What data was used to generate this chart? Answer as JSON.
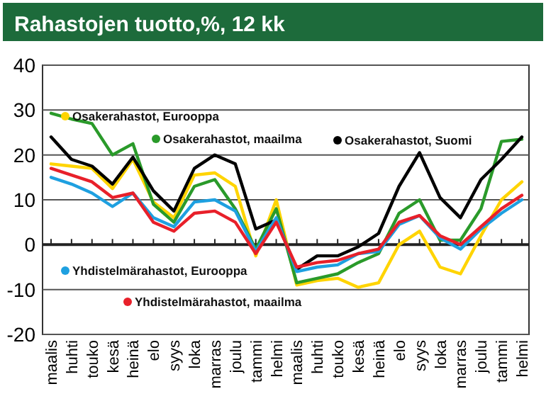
{
  "chart_data": {
    "type": "line",
    "title": "Rahastojen tuotto,%, 12 kk",
    "categories": [
      "maalis",
      "huhti",
      "touko",
      "kesä",
      "heinä",
      "elo",
      "syys",
      "loka",
      "marras",
      "joulu",
      "tammi",
      "helmi",
      "maalis",
      "huhti",
      "touko",
      "kesä",
      "heinä",
      "elo",
      "syys",
      "loka",
      "marras",
      "joulu",
      "tammi",
      "helmi"
    ],
    "series": [
      {
        "name": "Osakerahastot, Eurooppa",
        "color": "#ffd400",
        "values": [
          18,
          17.5,
          17,
          12.5,
          19,
          9.5,
          6,
          15.5,
          16,
          13,
          -2.5,
          10,
          -9,
          -8,
          -7.5,
          -9.5,
          -8.5,
          0,
          3,
          -5,
          -6.5,
          2,
          10,
          14
        ]
      },
      {
        "name": "Osakerahastot, maailma",
        "color": "#2a9a2a",
        "values": [
          29.3,
          28,
          27,
          20,
          22.5,
          9,
          5,
          13,
          14.5,
          8,
          -1,
          8,
          -8.5,
          -7.5,
          -6.5,
          -4,
          -2,
          7,
          10,
          1,
          1,
          8,
          23,
          23.5
        ]
      },
      {
        "name": "Osakerahastot, Suomi",
        "color": "#000000",
        "values": [
          24,
          19,
          17.5,
          13.5,
          19.5,
          12,
          7.5,
          17,
          20,
          18,
          3.5,
          5.5,
          -5.5,
          -2.5,
          -2.5,
          -0.5,
          2.5,
          13,
          20.5,
          10.5,
          6,
          14.5,
          19,
          24
        ]
      },
      {
        "name": "Yhdistelmärahastot, Eurooppa",
        "color": "#1ea0e0",
        "values": [
          15,
          13.5,
          11.5,
          8.5,
          11.5,
          6,
          4,
          9.5,
          10,
          7.5,
          -1.5,
          6,
          -6,
          -5,
          -4.5,
          -2,
          -1.5,
          4.5,
          6.5,
          1.5,
          -1,
          3.5,
          7,
          10
        ]
      },
      {
        "name": "Yhdistelmärahastot, maailma",
        "color": "#e8202a",
        "values": [
          17,
          15.5,
          14,
          10.5,
          11.5,
          5,
          3,
          7,
          7.5,
          5,
          -2,
          5,
          -5,
          -4,
          -3.5,
          -2,
          -1,
          5,
          6.5,
          2,
          0,
          4,
          8,
          11
        ]
      }
    ],
    "ylim": [
      -20,
      40
    ],
    "yticks": [
      -20,
      -10,
      0,
      10,
      20,
      30,
      40
    ],
    "grid": "y",
    "legend": "left",
    "line_style": "solid",
    "marker": "none"
  }
}
